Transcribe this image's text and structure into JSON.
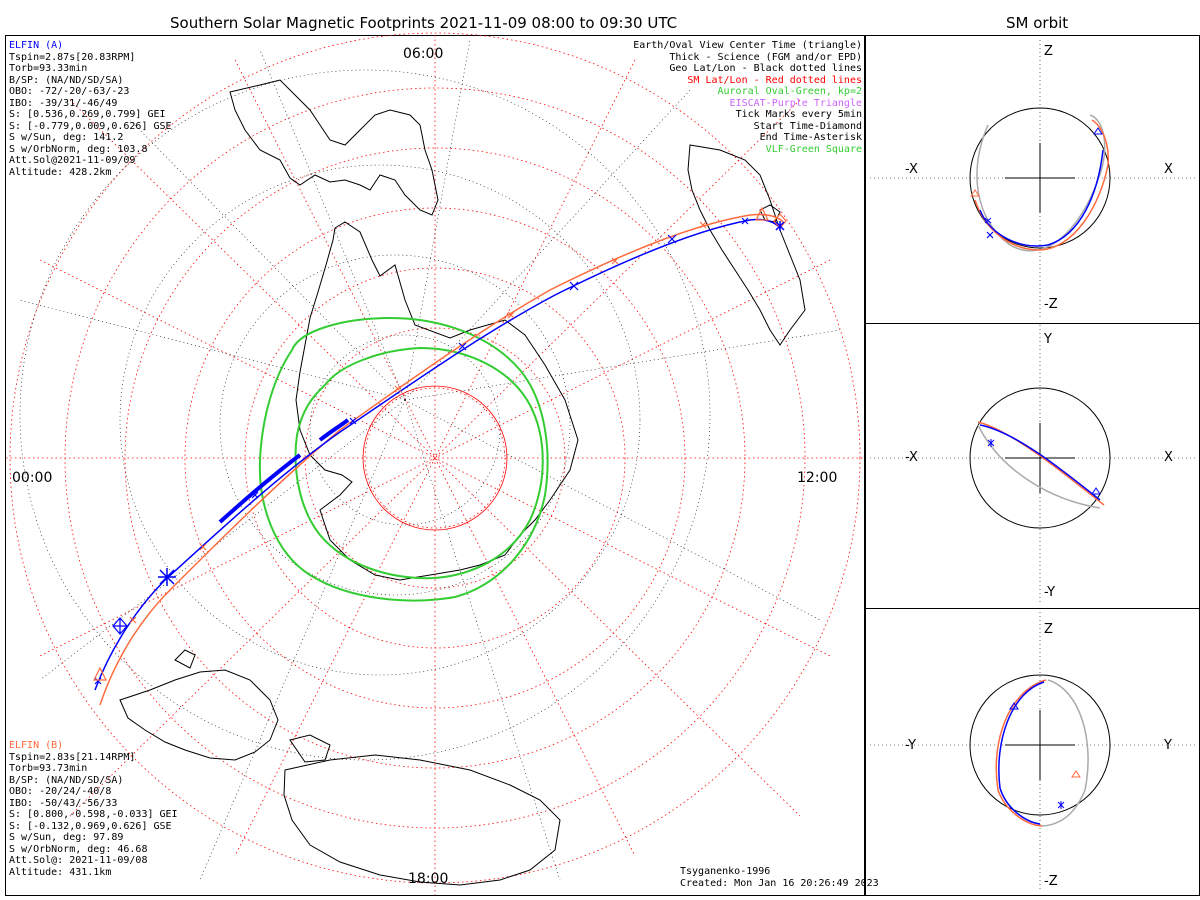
{
  "titles": {
    "main": "Southern Solar Magnetic Footprints 2021-11-09 08:00 to 09:30 UTC",
    "orbit": "SM orbit"
  },
  "map": {
    "time_labels": {
      "top": "06:00",
      "left": "00:00",
      "right": "12:00",
      "bottom": "18:00"
    }
  },
  "elfin_a": {
    "name": "ELFIN (A)",
    "color": "#0000ff",
    "lines": [
      "Tspin=2.87s[20.83RPM]",
      "Torb=93.33min",
      "B/SP: (NA/ND/SD/SA)",
      "OBO: -72/-20/-63/-23",
      "IBO: -39/31/-46/49",
      "S: [0.536,0.269,0.799] GEI",
      "S: [-0.779,0.009,0.626] GSE",
      "S w/Sun, deg: 141.2",
      "S w/OrbNorm, deg: 103.8",
      "Att.Sol@2021-11-09/09",
      "Altitude: 428.2km"
    ]
  },
  "elfin_b": {
    "name": "ELFIN (B)",
    "color": "#ff6a3d",
    "lines": [
      "Tspin=2.83s[21.14RPM]",
      "Torb=93.73min",
      "B/SP: (NA/ND/SD/SA)",
      "OBO: -20/24/-40/8",
      "IBO: -50/43/-56/33",
      "S: [0.800,-0.598,-0.033] GEI",
      "S: [-0.132,0.969,0.626] GSE",
      "S w/Sun, deg: 97.89",
      "S w/OrbNorm, deg: 46.68",
      "Att.Sol@: 2021-11-09/08",
      "Altitude: 431.1km"
    ]
  },
  "legend": [
    {
      "text": "Earth/Oval View Center Time (triangle)",
      "color": "#000000"
    },
    {
      "text": "Thick - Science (FGM and/or EPD)",
      "color": "#000000"
    },
    {
      "text": "Geo Lat/Lon - Black dotted lines",
      "color": "#000000"
    },
    {
      "text": "SM Lat/Lon - Red dotted lines",
      "color": "#ff0000"
    },
    {
      "text": "Auroral Oval-Green, kp=2",
      "color": "#33cc33"
    },
    {
      "text": "EISCAT-Purple Triangle",
      "color": "#cc66ff"
    },
    {
      "text": "Tick Marks every 5min",
      "color": "#000000"
    },
    {
      "text": "Start Time-Diamond",
      "color": "#000000"
    },
    {
      "text": "End Time-Asterisk",
      "color": "#000000"
    },
    {
      "text": "VLF-Green Square",
      "color": "#33cc33"
    }
  ],
  "credits": {
    "model": "Tsyganenko-1996",
    "created": "Created: Mon Jan 16 20:26:49 2023"
  },
  "orbit_panels": [
    {
      "name": "xz",
      "top": "Z",
      "bottom": "-Z",
      "left": "-X",
      "right": "X"
    },
    {
      "name": "xy",
      "top": "Y",
      "bottom": "-Y",
      "left": "-X",
      "right": "X"
    },
    {
      "name": "yz",
      "top": "Z",
      "bottom": "-Z",
      "left": "-Y",
      "right": "Y"
    }
  ],
  "colors": {
    "elfin_a": "#0000ff",
    "elfin_b": "#ff6a3d",
    "sm_grid": "#ff0000",
    "oval": "#33cc33",
    "geo_grid": "#000000",
    "orbit_gray": "#aaaaaa"
  }
}
